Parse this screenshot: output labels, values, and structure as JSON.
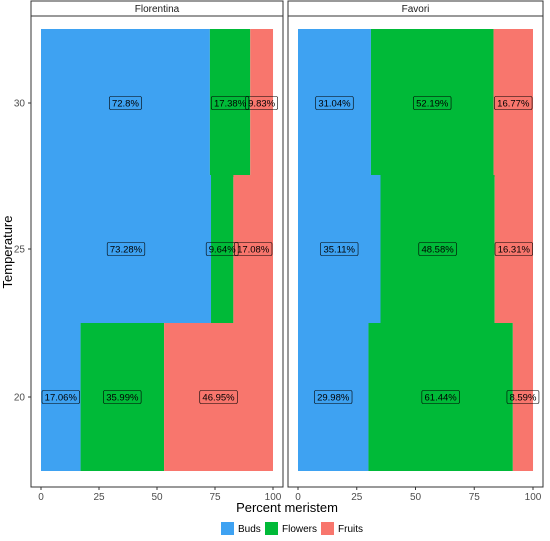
{
  "chart_data": {
    "type": "bar",
    "orientation": "horizontal",
    "stacked": true,
    "xlabel": "Percent meristem",
    "ylabel": "Temperature",
    "xlim": [
      0,
      100
    ],
    "x_ticks": [
      "0",
      "25",
      "50",
      "75",
      "100"
    ],
    "categories": [
      "30",
      "25",
      "20"
    ],
    "panels": [
      {
        "name": "Florentina",
        "series": [
          {
            "name": "Buds",
            "values": [
              72.8,
              73.28,
              17.06
            ],
            "labels": [
              "72.8%",
              "73.28%",
              "17.06%"
            ]
          },
          {
            "name": "Flowers",
            "values": [
              17.38,
              9.64,
              35.99
            ],
            "labels": [
              "17.38%",
              "9.64%",
              "35.99%"
            ]
          },
          {
            "name": "Fruits",
            "values": [
              9.83,
              17.08,
              46.95
            ],
            "labels": [
              "9.83%",
              "17.08%",
              "46.95%"
            ]
          }
        ]
      },
      {
        "name": "Favori",
        "series": [
          {
            "name": "Buds",
            "values": [
              31.04,
              35.11,
              29.98
            ],
            "labels": [
              "31.04%",
              "35.11%",
              "29.98%"
            ]
          },
          {
            "name": "Flowers",
            "values": [
              52.19,
              48.58,
              61.44
            ],
            "labels": [
              "52.19%",
              "48.58%",
              "61.44%"
            ]
          },
          {
            "name": "Fruits",
            "values": [
              16.77,
              16.31,
              8.59
            ],
            "labels": [
              "16.77%",
              "16.31%",
              "8.59%"
            ]
          }
        ]
      }
    ],
    "colors": {
      "Buds": "#3ea2f2",
      "Flowers": "#00ba38",
      "Fruits": "#f8766d"
    },
    "legend_position": "bottom",
    "grid": false
  }
}
